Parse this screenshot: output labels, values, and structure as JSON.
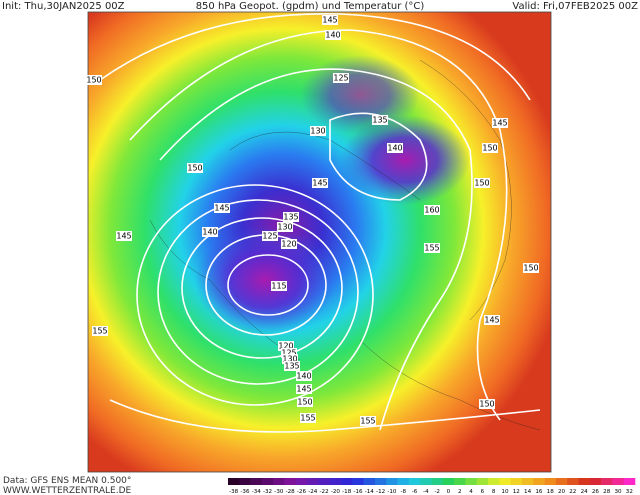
{
  "header": {
    "init": "Init: Thu,30JAN2025 00Z",
    "title": "850 hPa Geopot. (gpdm) und Temperatur (°C)",
    "valid": "Valid: Fri,07FEB2025 00Z"
  },
  "footer": {
    "source": "Data: GFS ENS MEAN 0.500°",
    "site": "WWW.WETTERZENTRALE.DE"
  },
  "colorbar": {
    "ticks": [
      -38,
      -36,
      -34,
      -32,
      -30,
      -28,
      -26,
      -24,
      -22,
      -20,
      -18,
      -16,
      -14,
      -12,
      -10,
      -8,
      -6,
      -4,
      -2,
      0,
      2,
      4,
      6,
      8,
      10,
      12,
      14,
      16,
      18,
      20,
      22,
      24,
      26,
      28,
      30,
      32
    ]
  },
  "contour_labels": [
    145,
    140,
    150,
    125,
    135,
    130,
    140,
    150,
    145,
    150,
    145,
    150,
    160,
    145,
    135,
    140,
    130,
    125,
    120,
    145,
    155,
    115,
    150,
    155,
    145,
    120,
    125,
    130,
    135,
    140,
    145,
    150,
    155,
    155,
    150
  ]
}
